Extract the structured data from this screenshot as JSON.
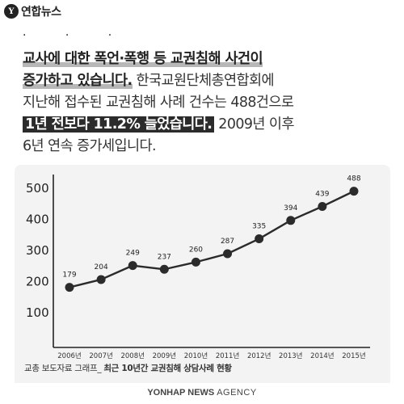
{
  "logo": {
    "mark": "Y",
    "name": "연합뉴스"
  },
  "dots": "· · ·",
  "text": {
    "line1_hl": "교사에 대한 폭언·폭행 등 교권침해 사건이",
    "line2_hl": "증가하고 있습니다.",
    "line2_rest": " 한국교원단체총연합회에",
    "line3": "지난해 접수된 교권침해 사례 건수는 488건으로",
    "line4_box": "1년 전보다 11.2% 늘었습니다.",
    "line4_rest": " 2009년 이후",
    "line5": "6년 연속 증가세입니다."
  },
  "chart_data": {
    "type": "line",
    "title": "",
    "xlabel": "",
    "ylabel": "",
    "categories": [
      "2006년",
      "2007년",
      "2008년",
      "2009년",
      "2010년",
      "2011년",
      "2012년",
      "2013년",
      "2014년",
      "2015년"
    ],
    "values": [
      179,
      204,
      249,
      237,
      260,
      287,
      335,
      394,
      439,
      488
    ],
    "y_ticks": [
      "100",
      "200",
      "300",
      "400",
      "500"
    ],
    "ylim": [
      0,
      500
    ],
    "grid": false,
    "line_color": "#2b2b2b",
    "marker_color": "#2b2b2b"
  },
  "caption": {
    "prefix": "교총 보도자료 그래프_ ",
    "main": "최근 10년간 교권침해 상담사례 현황"
  },
  "agency": {
    "bold": "YONHAP NEWS",
    "rest": " AGENCY"
  }
}
